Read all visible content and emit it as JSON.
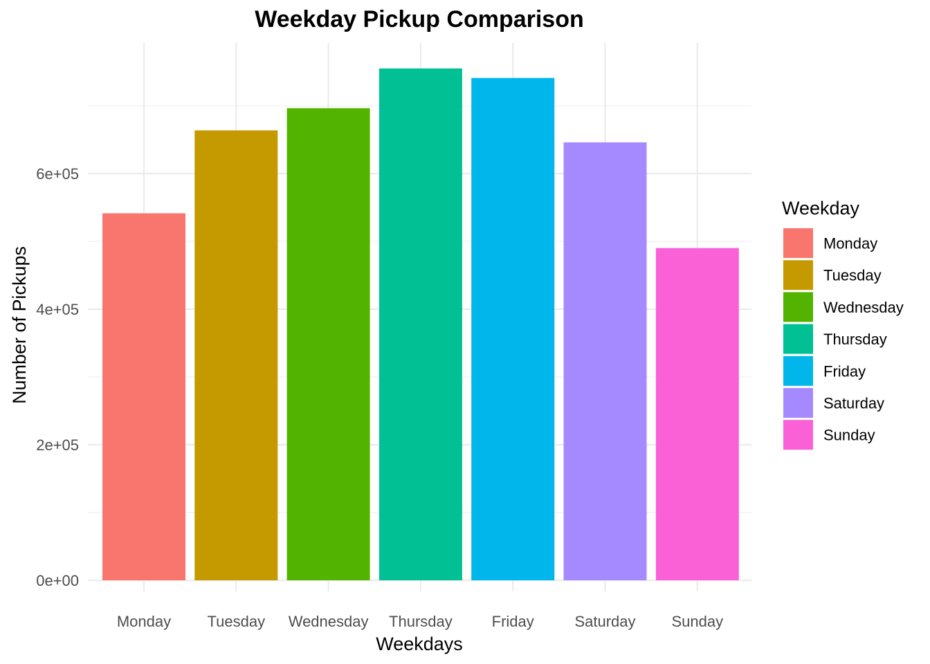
{
  "chart_data": {
    "type": "bar",
    "title": "Weekday Pickup Comparison",
    "xlabel": "Weekdays",
    "ylabel": "Number of Pickups",
    "categories": [
      "Monday",
      "Tuesday",
      "Wednesday",
      "Thursday",
      "Friday",
      "Saturday",
      "Sunday"
    ],
    "values": [
      541472,
      663789,
      696488,
      755145,
      741139,
      646114,
      490180
    ],
    "colors": [
      "#F8766D",
      "#C49A00",
      "#53B400",
      "#00C094",
      "#00B6EB",
      "#A58AFF",
      "#FB61D7"
    ],
    "ylim": [
      0,
      755145
    ],
    "yticks": [
      0,
      200000,
      400000,
      600000
    ],
    "ytick_labels": [
      "0e+00",
      "2e+05",
      "4e+05",
      "6e+05"
    ],
    "grid": true,
    "legend": {
      "title": "Weekday",
      "placement": "right",
      "entries": [
        "Monday",
        "Tuesday",
        "Wednesday",
        "Thursday",
        "Friday",
        "Saturday",
        "Sunday"
      ]
    }
  }
}
